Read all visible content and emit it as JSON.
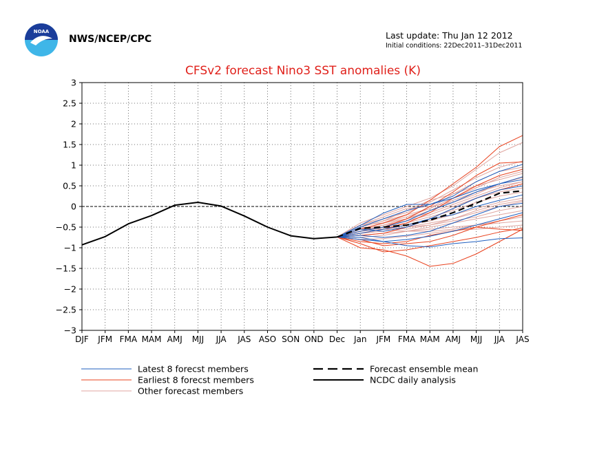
{
  "header": {
    "agency": "NWS/NCEP/CPC",
    "last_update": "Last update: Thu Jan 12 2012",
    "initial_conditions": "Initial conditions: 22Dec2011–31Dec2011",
    "logo_text": "NOAA"
  },
  "colors": {
    "title": "#e0201a",
    "latest": "#1f5fbf",
    "earliest": "#e8401c",
    "other": "#e0a6a0",
    "mean": "#000000",
    "analysis": "#000000",
    "grid": "#444444"
  },
  "chart_data": {
    "type": "line",
    "title": "CFSv2 forecast Nino3 SST anomalies (K)",
    "xlabel": "",
    "ylabel": "",
    "ylim": [
      -3,
      3
    ],
    "yticks": [
      3,
      2.5,
      2,
      1.5,
      1,
      0.5,
      0,
      -0.5,
      -1,
      -1.5,
      -2,
      -2.5,
      -3
    ],
    "ytick_labels": [
      "3",
      "2.5",
      "2",
      "1.5",
      "1",
      "0.5",
      "0",
      "−0.5",
      "−1",
      "−1.5",
      "−2",
      "−2.5",
      "−3"
    ],
    "categories": [
      "DJF",
      "JFM",
      "FMA",
      "MAM",
      "AMJ",
      "MJJ",
      "JJA",
      "JAS",
      "ASO",
      "SON",
      "OND",
      "Dec",
      "Jan",
      "JFM",
      "FMA",
      "MAM",
      "AMJ",
      "MJJ",
      "JJA",
      "JAS"
    ],
    "grid": true,
    "zero_line": true,
    "legend": {
      "placement": "bottom",
      "entries": [
        {
          "label": "Latest 8 forecst members",
          "style": "latest"
        },
        {
          "label": "Earliest 8 forecst members",
          "style": "earliest"
        },
        {
          "label": "Other forecast members",
          "style": "other"
        },
        {
          "label": "Forecast ensemble mean",
          "style": "mean"
        },
        {
          "label": "NCDC daily analysis",
          "style": "analysis"
        }
      ]
    },
    "analysis": {
      "name": "NCDC daily analysis",
      "x_index": [
        0,
        1,
        2,
        3,
        4,
        5,
        6,
        7,
        8,
        9,
        10,
        11
      ],
      "values": [
        -0.93,
        -0.73,
        -0.42,
        -0.22,
        0.03,
        0.1,
        0.01,
        -0.23,
        -0.5,
        -0.71,
        -0.78,
        -0.74
      ]
    },
    "ensemble_mean": {
      "name": "Forecast ensemble mean",
      "x_index": [
        11,
        12,
        13,
        14,
        15,
        16,
        17,
        18,
        19
      ],
      "values": [
        -0.74,
        -0.53,
        -0.5,
        -0.45,
        -0.33,
        -0.15,
        0.08,
        0.32,
        0.38
      ]
    },
    "members_latest": {
      "x_index": [
        11,
        12,
        13,
        14,
        15,
        16,
        17,
        18,
        19
      ],
      "series": [
        [
          -0.74,
          -0.46,
          -0.16,
          0.05,
          0.05,
          0.25,
          0.6,
          0.85,
          1.02
        ],
        [
          -0.74,
          -0.5,
          -0.3,
          -0.1,
          0.05,
          0.2,
          0.4,
          0.55,
          0.72
        ],
        [
          -0.74,
          -0.6,
          -0.5,
          -0.35,
          -0.1,
          0.1,
          0.35,
          0.55,
          0.65
        ],
        [
          -0.74,
          -0.65,
          -0.55,
          -0.45,
          -0.3,
          -0.05,
          0.2,
          0.4,
          0.5
        ],
        [
          -0.74,
          -0.55,
          -0.6,
          -0.5,
          -0.3,
          -0.2,
          0.0,
          0.15,
          0.28
        ],
        [
          -0.74,
          -0.7,
          -0.75,
          -0.7,
          -0.6,
          -0.4,
          -0.2,
          0.0,
          0.08
        ],
        [
          -0.74,
          -0.8,
          -0.85,
          -0.95,
          -0.98,
          -0.9,
          -0.85,
          -0.78,
          -0.76
        ],
        [
          -0.74,
          -0.75,
          -0.85,
          -0.8,
          -0.72,
          -0.6,
          -0.45,
          -0.3,
          -0.15
        ]
      ]
    },
    "members_earliest": {
      "x_index": [
        11,
        12,
        13,
        14,
        15,
        16,
        17,
        18,
        19
      ],
      "series": [
        [
          -0.74,
          -0.55,
          -0.4,
          -0.2,
          0.15,
          0.55,
          0.95,
          1.45,
          1.72
        ],
        [
          -0.74,
          -0.6,
          -0.5,
          -0.3,
          0.0,
          0.35,
          0.75,
          1.05,
          1.08
        ],
        [
          -0.74,
          -0.65,
          -0.55,
          -0.4,
          -0.15,
          0.2,
          0.5,
          0.75,
          0.9
        ],
        [
          -0.74,
          -0.7,
          -0.65,
          -0.5,
          -0.3,
          -0.05,
          0.2,
          0.4,
          0.55
        ],
        [
          -0.74,
          -0.85,
          -0.9,
          -0.85,
          -0.7,
          -0.6,
          -0.5,
          -0.55,
          -0.58
        ],
        [
          -0.74,
          -0.9,
          -1.1,
          -1.05,
          -0.95,
          -0.85,
          -0.75,
          -0.62,
          -0.52
        ],
        [
          -0.74,
          -1.0,
          -1.05,
          -1.2,
          -1.45,
          -1.38,
          -1.15,
          -0.85,
          -0.55
        ],
        [
          -0.74,
          -0.8,
          -0.95,
          -0.9,
          -0.85,
          -0.7,
          -0.5,
          -0.35,
          -0.2
        ]
      ]
    },
    "members_other": {
      "x_index": [
        11,
        12,
        13,
        14,
        15,
        16,
        17,
        18,
        19
      ],
      "series": [
        [
          -0.74,
          -0.4,
          -0.2,
          0.0,
          0.2,
          0.5,
          0.9,
          1.3,
          1.55
        ],
        [
          -0.74,
          -0.45,
          -0.3,
          -0.15,
          0.1,
          0.4,
          0.7,
          0.95,
          1.1
        ],
        [
          -0.74,
          -0.5,
          -0.35,
          -0.2,
          -0.05,
          0.2,
          0.45,
          0.7,
          0.85
        ],
        [
          -0.74,
          -0.45,
          -0.4,
          -0.3,
          -0.1,
          0.15,
          0.35,
          0.5,
          0.6
        ],
        [
          -0.74,
          -0.55,
          -0.45,
          -0.35,
          -0.2,
          0.0,
          0.2,
          0.35,
          0.45
        ],
        [
          -0.74,
          -0.6,
          -0.5,
          -0.4,
          -0.25,
          -0.1,
          0.1,
          0.25,
          0.35
        ],
        [
          -0.74,
          -0.5,
          -0.55,
          -0.45,
          -0.35,
          -0.2,
          -0.05,
          0.1,
          0.2
        ],
        [
          -0.74,
          -0.65,
          -0.6,
          -0.5,
          -0.4,
          -0.3,
          -0.15,
          0.0,
          0.12
        ],
        [
          -0.74,
          -0.55,
          -0.5,
          -0.55,
          -0.45,
          -0.35,
          -0.25,
          -0.1,
          0.0
        ],
        [
          -0.74,
          -0.7,
          -0.65,
          -0.6,
          -0.5,
          -0.4,
          -0.3,
          -0.2,
          -0.1
        ],
        [
          -0.74,
          -0.5,
          -0.35,
          -0.1,
          0.15,
          0.3,
          0.5,
          0.65,
          0.8
        ],
        [
          -0.74,
          -0.6,
          -0.45,
          -0.3,
          -0.15,
          0.05,
          0.25,
          0.45,
          0.6
        ],
        [
          -0.74,
          -0.75,
          -0.7,
          -0.6,
          -0.55,
          -0.5,
          -0.45,
          -0.4,
          -0.35
        ],
        [
          -0.74,
          -0.8,
          -0.78,
          -0.72,
          -0.65,
          -0.58,
          -0.55,
          -0.5,
          -0.45
        ],
        [
          -0.74,
          -0.45,
          -0.25,
          -0.05,
          0.0,
          0.1,
          0.3,
          0.55,
          0.7
        ],
        [
          -0.74,
          -0.55,
          -0.4,
          -0.25,
          -0.05,
          0.3,
          0.6,
          0.85,
          0.95
        ],
        [
          -0.74,
          -0.65,
          -0.55,
          -0.5,
          -0.45,
          -0.3,
          -0.1,
          0.05,
          0.15
        ],
        [
          -0.74,
          -0.6,
          -0.55,
          -0.6,
          -0.6,
          -0.55,
          -0.45,
          -0.35,
          -0.25
        ]
      ]
    }
  }
}
